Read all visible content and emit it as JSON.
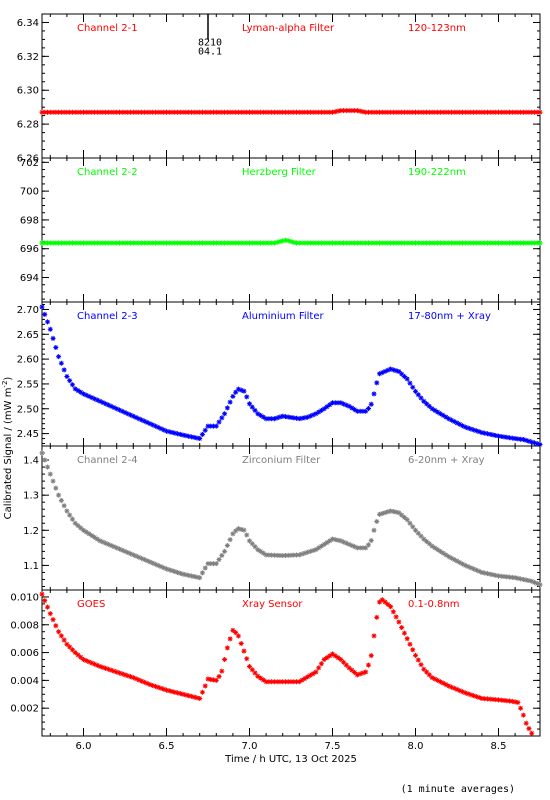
{
  "chart_data": {
    "type": "scatter",
    "x_axis": {
      "label": "Time / h UTC, 13 Oct 2025",
      "range": [
        5.75,
        8.75
      ],
      "ticks": [
        6.0,
        6.5,
        7.0,
        7.5,
        8.0,
        8.5
      ],
      "tick_labels": [
        "6.0",
        "6.5",
        "7.0",
        "7.5",
        "8.0",
        "8.5"
      ],
      "minor_step": 0.1
    },
    "y_axis_label": "Calibrated Signal / (mW m",
    "y_axis_label_sup": "-2",
    "y_axis_label_end": ")",
    "footnote": "(1 minute averages)",
    "marker": {
      "x": 6.75,
      "y_top": 6.345,
      "y_bottom": 6.33,
      "label_line1": "8210",
      "label_line2": "04.1"
    },
    "panels": [
      {
        "channel": "Channel 2-1",
        "filter": "Lyman-alpha Filter",
        "band": "120-123nm",
        "color": "#ff0000",
        "ylim": [
          6.26,
          6.345
        ],
        "yticks": [
          6.26,
          6.28,
          6.3,
          6.32,
          6.34
        ],
        "ytick_labels": [
          "6.26",
          "6.28",
          "6.30",
          "6.32",
          "6.34"
        ],
        "minor_step": 0.005,
        "series": [
          [
            5.75,
            6.287
          ],
          [
            6.0,
            6.287
          ],
          [
            6.5,
            6.287
          ],
          [
            7.0,
            6.287
          ],
          [
            7.5,
            6.287
          ],
          [
            7.55,
            6.288
          ],
          [
            7.65,
            6.288
          ],
          [
            7.7,
            6.287
          ],
          [
            8.0,
            6.287
          ],
          [
            8.5,
            6.287
          ],
          [
            8.75,
            6.287
          ]
        ]
      },
      {
        "channel": "Channel 2-2",
        "filter": "Herzberg Filter",
        "band": "190-222nm",
        "color": "#00ff00",
        "ylim": [
          692.3,
          702.3
        ],
        "yticks": [
          694,
          696,
          698,
          700,
          702
        ],
        "ytick_labels": [
          "694",
          "696",
          "698",
          "700",
          "702"
        ],
        "minor_step": 0.5,
        "series": [
          [
            5.75,
            696.4
          ],
          [
            6.5,
            696.4
          ],
          [
            7.15,
            696.4
          ],
          [
            7.22,
            696.6
          ],
          [
            7.28,
            696.4
          ],
          [
            8.0,
            696.4
          ],
          [
            8.75,
            696.4
          ]
        ]
      },
      {
        "channel": "Channel 2-3",
        "filter": "Aluminium Filter",
        "band": "17-80nm + Xray",
        "color": "#0000ff",
        "ylim": [
          2.425,
          2.715
        ],
        "yticks": [
          2.45,
          2.5,
          2.55,
          2.6,
          2.65,
          2.7
        ],
        "ytick_labels": [
          "2.45",
          "2.50",
          "2.55",
          "2.60",
          "2.65",
          "2.70"
        ],
        "minor_step": 0.01,
        "series": [
          [
            5.75,
            2.705
          ],
          [
            5.8,
            2.66
          ],
          [
            5.85,
            2.605
          ],
          [
            5.9,
            2.565
          ],
          [
            5.95,
            2.54
          ],
          [
            6.0,
            2.53
          ],
          [
            6.1,
            2.515
          ],
          [
            6.2,
            2.5
          ],
          [
            6.3,
            2.485
          ],
          [
            6.4,
            2.47
          ],
          [
            6.5,
            2.455
          ],
          [
            6.6,
            2.447
          ],
          [
            6.7,
            2.44
          ],
          [
            6.73,
            2.455
          ],
          [
            6.75,
            2.465
          ],
          [
            6.8,
            2.465
          ],
          [
            6.85,
            2.49
          ],
          [
            6.9,
            2.525
          ],
          [
            6.93,
            2.54
          ],
          [
            6.97,
            2.535
          ],
          [
            7.0,
            2.51
          ],
          [
            7.05,
            2.49
          ],
          [
            7.1,
            2.48
          ],
          [
            7.15,
            2.48
          ],
          [
            7.2,
            2.485
          ],
          [
            7.3,
            2.48
          ],
          [
            7.35,
            2.483
          ],
          [
            7.4,
            2.49
          ],
          [
            7.45,
            2.5
          ],
          [
            7.5,
            2.512
          ],
          [
            7.55,
            2.512
          ],
          [
            7.6,
            2.505
          ],
          [
            7.65,
            2.495
          ],
          [
            7.7,
            2.495
          ],
          [
            7.73,
            2.505
          ],
          [
            7.75,
            2.53
          ],
          [
            7.78,
            2.57
          ],
          [
            7.85,
            2.58
          ],
          [
            7.9,
            2.575
          ],
          [
            7.95,
            2.56
          ],
          [
            8.0,
            2.535
          ],
          [
            8.05,
            2.515
          ],
          [
            8.1,
            2.5
          ],
          [
            8.2,
            2.48
          ],
          [
            8.3,
            2.463
          ],
          [
            8.4,
            2.452
          ],
          [
            8.5,
            2.445
          ],
          [
            8.6,
            2.44
          ],
          [
            8.65,
            2.438
          ],
          [
            8.7,
            2.433
          ],
          [
            8.75,
            2.428
          ]
        ]
      },
      {
        "channel": "Channel 2-4",
        "filter": "Zirconium Filter",
        "band": "6-20nm + Xray",
        "color": "#808080",
        "ylim": [
          1.03,
          1.44
        ],
        "yticks": [
          1.1,
          1.2,
          1.3,
          1.4
        ],
        "ytick_labels": [
          "1.1",
          "1.2",
          "1.3",
          "1.4"
        ],
        "minor_step": 0.02,
        "series": [
          [
            5.75,
            1.42
          ],
          [
            5.8,
            1.36
          ],
          [
            5.85,
            1.3
          ],
          [
            5.9,
            1.255
          ],
          [
            5.95,
            1.22
          ],
          [
            6.0,
            1.2
          ],
          [
            6.1,
            1.17
          ],
          [
            6.2,
            1.15
          ],
          [
            6.3,
            1.13
          ],
          [
            6.4,
            1.11
          ],
          [
            6.5,
            1.09
          ],
          [
            6.6,
            1.075
          ],
          [
            6.7,
            1.065
          ],
          [
            6.73,
            1.09
          ],
          [
            6.75,
            1.105
          ],
          [
            6.8,
            1.105
          ],
          [
            6.85,
            1.14
          ],
          [
            6.9,
            1.19
          ],
          [
            6.93,
            1.205
          ],
          [
            6.97,
            1.2
          ],
          [
            7.0,
            1.17
          ],
          [
            7.05,
            1.145
          ],
          [
            7.1,
            1.13
          ],
          [
            7.2,
            1.128
          ],
          [
            7.3,
            1.13
          ],
          [
            7.4,
            1.145
          ],
          [
            7.45,
            1.16
          ],
          [
            7.5,
            1.175
          ],
          [
            7.55,
            1.17
          ],
          [
            7.6,
            1.16
          ],
          [
            7.65,
            1.15
          ],
          [
            7.7,
            1.15
          ],
          [
            7.73,
            1.165
          ],
          [
            7.75,
            1.2
          ],
          [
            7.78,
            1.245
          ],
          [
            7.85,
            1.255
          ],
          [
            7.9,
            1.25
          ],
          [
            7.95,
            1.23
          ],
          [
            8.0,
            1.2
          ],
          [
            8.05,
            1.175
          ],
          [
            8.1,
            1.155
          ],
          [
            8.2,
            1.125
          ],
          [
            8.3,
            1.1
          ],
          [
            8.4,
            1.08
          ],
          [
            8.5,
            1.07
          ],
          [
            8.6,
            1.065
          ],
          [
            8.65,
            1.06
          ],
          [
            8.7,
            1.055
          ],
          [
            8.75,
            1.045
          ]
        ]
      },
      {
        "channel": "GOES",
        "filter": "Xray Sensor",
        "band": "0.1-0.8nm",
        "color": "#ff0000",
        "ylim": [
          0.0,
          0.0105
        ],
        "yticks": [
          0.002,
          0.004,
          0.006,
          0.008,
          0.01
        ],
        "ytick_labels": [
          "0.002",
          "0.004",
          "0.006",
          "0.008",
          "0.010"
        ],
        "minor_step": 0.0005,
        "series": [
          [
            5.75,
            0.0102
          ],
          [
            5.8,
            0.0088
          ],
          [
            5.85,
            0.0075
          ],
          [
            5.9,
            0.0066
          ],
          [
            5.95,
            0.006
          ],
          [
            6.0,
            0.0055
          ],
          [
            6.1,
            0.005
          ],
          [
            6.2,
            0.0046
          ],
          [
            6.3,
            0.0042
          ],
          [
            6.4,
            0.0037
          ],
          [
            6.5,
            0.0033
          ],
          [
            6.6,
            0.003
          ],
          [
            6.7,
            0.0027
          ],
          [
            6.73,
            0.0035
          ],
          [
            6.75,
            0.0041
          ],
          [
            6.8,
            0.004
          ],
          [
            6.83,
            0.0045
          ],
          [
            6.87,
            0.0065
          ],
          [
            6.9,
            0.0076
          ],
          [
            6.93,
            0.0073
          ],
          [
            6.97,
            0.006
          ],
          [
            7.0,
            0.005
          ],
          [
            7.05,
            0.0043
          ],
          [
            7.1,
            0.0039
          ],
          [
            7.2,
            0.0039
          ],
          [
            7.3,
            0.0039
          ],
          [
            7.4,
            0.0046
          ],
          [
            7.45,
            0.0055
          ],
          [
            7.5,
            0.0059
          ],
          [
            7.55,
            0.0055
          ],
          [
            7.6,
            0.0049
          ],
          [
            7.65,
            0.0044
          ],
          [
            7.7,
            0.0046
          ],
          [
            7.73,
            0.0055
          ],
          [
            7.75,
            0.0072
          ],
          [
            7.78,
            0.0096
          ],
          [
            7.8,
            0.0098
          ],
          [
            7.85,
            0.0093
          ],
          [
            7.9,
            0.0082
          ],
          [
            7.95,
            0.007
          ],
          [
            8.0,
            0.0058
          ],
          [
            8.05,
            0.0048
          ],
          [
            8.1,
            0.0042
          ],
          [
            8.2,
            0.0036
          ],
          [
            8.3,
            0.0031
          ],
          [
            8.4,
            0.0027
          ],
          [
            8.5,
            0.0026
          ],
          [
            8.58,
            0.0025
          ],
          [
            8.62,
            0.0024
          ],
          [
            8.65,
            0.0015
          ],
          [
            8.67,
            0.0008
          ],
          [
            8.7,
            0.0002
          ]
        ]
      }
    ]
  }
}
